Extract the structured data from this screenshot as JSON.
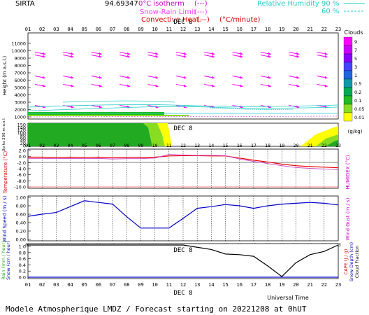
{
  "header": {
    "site": "SIRTA",
    "coord": "94.69347",
    "legend": [
      {
        "label": "0°C isotherm",
        "style": "(---)",
        "color": "#d000d0"
      },
      {
        "label": "Snow-Rain Limit",
        "style": "(---)",
        "color": "#ff44ff"
      },
      {
        "label": "Convective Heat.",
        "style": "(—)",
        "color": "#e00000"
      },
      {
        "label": "(°C/minute)",
        "style": "",
        "color": "#e00000"
      }
    ],
    "humidity_label": "Relative Humidity",
    "humidity_levels": [
      "90 %",
      "60 %"
    ],
    "humidity_color": "#22cccc"
  },
  "hours": [
    "01",
    "02",
    "03",
    "04",
    "05",
    "06",
    "07",
    "08",
    "09",
    "10",
    "11",
    "12",
    "13",
    "14",
    "15",
    "16",
    "17",
    "18",
    "19",
    "20",
    "21",
    "22",
    "23"
  ],
  "day_label": "DEC 8",
  "footer": {
    "universal_time": "Universal Time",
    "caption": "Modele Atmospherique LMDZ / Forecast starting on 20221208 at 0hUT"
  },
  "colorbar": {
    "title": "Clouds",
    "unit": "(g/kg)",
    "ticks": [
      "9",
      "7",
      "5",
      "3",
      "1",
      "0.5",
      "0.2",
      "0.1",
      "0.05",
      "0.01"
    ],
    "colors": [
      "#ff00ff",
      "#cc00ff",
      "#8800ff",
      "#4444ff",
      "#2266dd",
      "#1199aa",
      "#00aa55",
      "#22bb22",
      "#88dd22",
      "#ffff00"
    ]
  },
  "panels": {
    "height": {
      "ylabel": "Height  (m a.s.l.)",
      "yticks": [
        "11000",
        "10000",
        "9000",
        "8000",
        "7000",
        "6000",
        "5000",
        "4000",
        "3000",
        "2000",
        "1000"
      ]
    },
    "lowlevel": {
      "ylabel": "Up to 200 m a.s.l.",
      "yticks": [
        "150",
        "140",
        "120",
        "100",
        "80",
        "60",
        "40",
        "20",
        "0"
      ]
    },
    "temperature": {
      "ylabel": "Temperature (°C)",
      "ylabel_right": "HUMIDEX (°C)",
      "yticks": [
        "2.0",
        "0.0",
        "-2.0",
        "-4.0",
        "-6.0",
        "-8.0",
        "-10.0"
      ]
    },
    "wind": {
      "ylabel": "Wind Speed (m / s)",
      "ylabel_right": "Wind Gust (m / s)",
      "yticks": [
        "1.00",
        "0.80",
        "0.60",
        "0.40",
        "0.20",
        "0.00"
      ]
    },
    "rain": {
      "ylabel_a": "Rain (mm / hour)",
      "ylabel_b": "Snow (cm / hour)",
      "ylabel_right_a": "CAPE (J / g)",
      "ylabel_right_b": "Snow Depth (cm)",
      "ylabel_right_c": "Cloud Fraction",
      "yticks": [
        "1.0",
        "0.8",
        "0.6",
        "0.4",
        "0.2",
        "0.0"
      ]
    }
  },
  "chart_data": [
    {
      "type": "line",
      "name": "wind-speed",
      "x": [
        1,
        2,
        3,
        4,
        5,
        6,
        7,
        8,
        9,
        10,
        11,
        12,
        13,
        14,
        15,
        16,
        17,
        18,
        19,
        20,
        21,
        22,
        23
      ],
      "series": [
        {
          "name": "",
          "color": "#0000cc",
          "values": [
            0.55,
            0.6,
            0.64,
            0.78,
            0.92,
            0.88,
            0.84,
            0.54,
            0.27,
            0.27,
            0.27,
            0.5,
            0.74,
            0.78,
            0.83,
            0.8,
            0.74,
            0.8,
            0.84,
            0.86,
            0.88,
            0.86,
            0.82
          ]
        }
      ],
      "ylim": [
        0,
        1.0
      ]
    },
    {
      "type": "line",
      "name": "temperature",
      "x": [
        1,
        2,
        3,
        4,
        5,
        6,
        7,
        8,
        9,
        10,
        11,
        12,
        13,
        14,
        15,
        16,
        17,
        18,
        19,
        20,
        21,
        22,
        23
      ],
      "series": [
        {
          "name": "",
          "color": "#ee0000",
          "values": [
            -0.2,
            -0.2,
            -0.3,
            -0.2,
            -0.3,
            -0.2,
            -0.4,
            -0.3,
            -0.3,
            -0.2,
            0.2,
            0.3,
            0.3,
            0.2,
            0.2,
            -0.5,
            -1.2,
            -1.8,
            -2.5,
            -3.0,
            -3.3,
            -3.5,
            -3.7
          ]
        },
        {
          "name": "",
          "color": "#cc44cc",
          "values": [
            -0.6,
            -0.6,
            -0.7,
            -0.6,
            -0.7,
            -0.6,
            -0.8,
            -0.7,
            -0.7,
            -0.5,
            0.7,
            0.5,
            0.4,
            0.4,
            0.3,
            -0.8,
            -1.6,
            -2.3,
            -3.0,
            -3.6,
            -3.9,
            -4.1,
            -4.3
          ]
        }
      ],
      "ylim": [
        -10,
        2
      ]
    },
    {
      "type": "line",
      "name": "cloud-fraction",
      "x": [
        1,
        2,
        3,
        4,
        5,
        6,
        7,
        8,
        9,
        10,
        11,
        12,
        13,
        14,
        15,
        16,
        17,
        18,
        19,
        20,
        21,
        22,
        23
      ],
      "series": [
        {
          "name": "",
          "color": "#000000",
          "values": [
            1,
            1,
            1,
            1,
            1,
            1,
            1,
            1,
            1,
            1,
            1,
            1,
            0.93,
            0.86,
            0.72,
            0.7,
            0.65,
            0.35,
            0.02,
            0.45,
            0.7,
            0.8,
            1.0
          ]
        }
      ],
      "ylim": [
        0,
        1.0
      ]
    },
    {
      "type": "line",
      "name": "rain",
      "x": [
        1,
        23
      ],
      "series": [
        {
          "name": "",
          "color": "#0000cc",
          "values": [
            0,
            0
          ]
        }
      ],
      "ylim": [
        0,
        1.0
      ]
    },
    {
      "type": "heatmap",
      "name": "wind-arrows",
      "x": [
        1,
        2,
        3,
        4,
        5,
        6,
        7,
        8,
        9,
        10,
        11,
        12,
        13,
        14,
        15,
        16,
        17,
        18,
        19,
        20,
        21,
        22,
        23
      ],
      "levels_m": [
        11000,
        10000,
        9000,
        8000,
        7000,
        6000,
        5000,
        4000,
        3000,
        2000
      ],
      "color": "#ff00ff"
    }
  ]
}
